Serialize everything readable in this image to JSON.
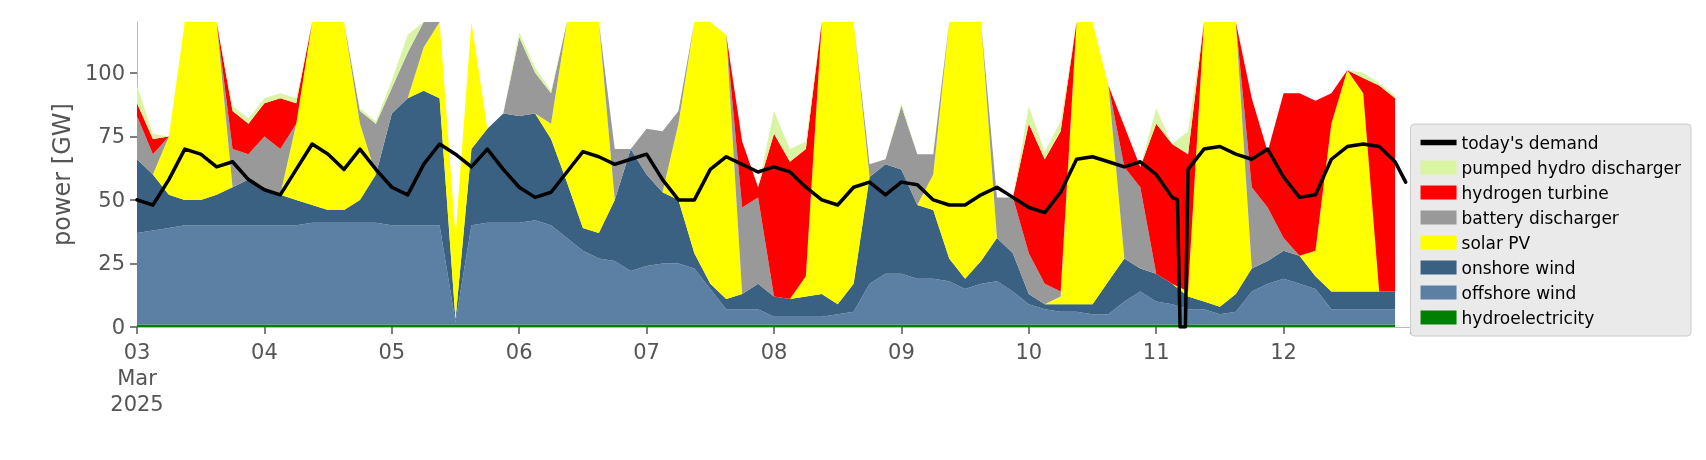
{
  "chart_data": {
    "type": "area",
    "stacked": true,
    "ylabel": "power [GW]",
    "ylim": [
      0,
      120
    ],
    "yticks": [
      0,
      25,
      50,
      75,
      100
    ],
    "xlim": [
      "2025-03-03",
      "2025-03-13"
    ],
    "xticks": [
      {
        "value": "2025-03-03",
        "label": "03\nMar\n2025"
      },
      {
        "value": "2025-03-04",
        "label": "04"
      },
      {
        "value": "2025-03-05",
        "label": "05"
      },
      {
        "value": "2025-03-06",
        "label": "06"
      },
      {
        "value": "2025-03-07",
        "label": "07"
      },
      {
        "value": "2025-03-08",
        "label": "08"
      },
      {
        "value": "2025-03-09",
        "label": "09"
      },
      {
        "value": "2025-03-10",
        "label": "10"
      },
      {
        "value": "2025-03-11",
        "label": "11"
      },
      {
        "value": "2025-03-12",
        "label": "12"
      },
      {
        "value": "2025-03-13",
        "label": null
      }
    ],
    "legend": "right",
    "marker": "none",
    "x": [
      "2025-03-03T00:00",
      "2025-03-03T03:00",
      "2025-03-03T06:00",
      "2025-03-03T09:00",
      "2025-03-03T12:00",
      "2025-03-03T15:00",
      "2025-03-03T18:00",
      "2025-03-03T21:00",
      "2025-03-04T00:00",
      "2025-03-04T03:00",
      "2025-03-04T06:00",
      "2025-03-04T09:00",
      "2025-03-04T12:00",
      "2025-03-04T15:00",
      "2025-03-04T18:00",
      "2025-03-04T21:00",
      "2025-03-05T00:00",
      "2025-03-05T03:00",
      "2025-03-05T06:00",
      "2025-03-05T09:00",
      "2025-03-05T12:00",
      "2025-03-05T15:00",
      "2025-03-05T18:00",
      "2025-03-05T21:00",
      "2025-03-06T00:00",
      "2025-03-06T03:00",
      "2025-03-06T06:00",
      "2025-03-06T09:00",
      "2025-03-06T12:00",
      "2025-03-06T15:00",
      "2025-03-06T18:00",
      "2025-03-06T21:00",
      "2025-03-07T00:00",
      "2025-03-07T03:00",
      "2025-03-07T06:00",
      "2025-03-07T09:00",
      "2025-03-07T12:00",
      "2025-03-07T15:00",
      "2025-03-07T18:00",
      "2025-03-07T21:00",
      "2025-03-08T00:00",
      "2025-03-08T03:00",
      "2025-03-08T06:00",
      "2025-03-08T09:00",
      "2025-03-08T12:00",
      "2025-03-08T15:00",
      "2025-03-08T18:00",
      "2025-03-08T21:00",
      "2025-03-09T00:00",
      "2025-03-09T03:00",
      "2025-03-09T06:00",
      "2025-03-09T09:00",
      "2025-03-09T12:00",
      "2025-03-09T15:00",
      "2025-03-09T18:00",
      "2025-03-09T21:00",
      "2025-03-10T00:00",
      "2025-03-10T03:00",
      "2025-03-10T06:00",
      "2025-03-10T09:00",
      "2025-03-10T12:00",
      "2025-03-10T15:00",
      "2025-03-10T18:00",
      "2025-03-10T21:00",
      "2025-03-11T00:00",
      "2025-03-11T03:00",
      "2025-03-11T06:00",
      "2025-03-11T09:00",
      "2025-03-11T12:00",
      "2025-03-11T15:00",
      "2025-03-11T18:00",
      "2025-03-11T21:00",
      "2025-03-12T00:00",
      "2025-03-12T03:00",
      "2025-03-12T06:00",
      "2025-03-12T09:00",
      "2025-03-12T12:00",
      "2025-03-12T15:00",
      "2025-03-12T18:00",
      "2025-03-12T21:00"
    ],
    "series": [
      {
        "name": "hydroelectricity",
        "color": "#008000",
        "values": [
          1,
          1,
          1,
          1,
          1,
          1,
          1,
          1,
          1,
          1,
          1,
          1,
          1,
          1,
          1,
          1,
          1,
          1,
          1,
          1,
          1,
          1,
          1,
          1,
          1,
          1,
          1,
          1,
          1,
          1,
          1,
          1,
          1,
          1,
          1,
          1,
          1,
          1,
          1,
          1,
          1,
          1,
          1,
          1,
          1,
          1,
          1,
          1,
          1,
          1,
          1,
          1,
          1,
          1,
          1,
          1,
          1,
          1,
          1,
          1,
          1,
          1,
          1,
          1,
          1,
          1,
          1,
          1,
          1,
          1,
          1,
          1,
          1,
          1,
          1,
          1,
          1,
          1,
          1,
          1
        ]
      },
      {
        "name": "offshore wind",
        "color": "#5b80a3",
        "values": [
          36,
          37,
          38,
          39,
          39,
          39,
          39,
          39,
          39,
          39,
          39,
          40,
          40,
          40,
          40,
          40,
          39,
          39,
          39,
          39,
          1,
          39,
          40,
          40,
          40,
          41,
          39,
          34,
          29,
          26,
          25,
          21,
          23,
          24,
          24,
          22,
          14,
          6,
          6,
          6,
          3,
          3,
          3,
          3,
          4,
          5,
          16,
          20,
          20,
          18,
          18,
          17,
          14,
          16,
          17,
          13,
          8,
          6,
          5,
          5,
          4,
          4,
          9,
          13,
          9,
          8,
          6,
          6,
          4,
          5,
          13,
          16,
          18,
          16,
          14,
          6,
          6,
          6,
          6,
          6
        ]
      },
      {
        "name": "onshore wind",
        "color": "#3b6182",
        "values": [
          29,
          22,
          13,
          10,
          10,
          12,
          15,
          18,
          15,
          12,
          10,
          7,
          5,
          5,
          9,
          19,
          44,
          50,
          53,
          50,
          1,
          30,
          37,
          43,
          42,
          42,
          34,
          22,
          9,
          10,
          24,
          48,
          36,
          28,
          25,
          6,
          2,
          4,
          6,
          10,
          8,
          7,
          8,
          9,
          4,
          11,
          42,
          43,
          41,
          29,
          27,
          9,
          4,
          9,
          17,
          15,
          4,
          2,
          3,
          3,
          4,
          13,
          17,
          9,
          11,
          8,
          5,
          3,
          3,
          7,
          9,
          9,
          11,
          11,
          5,
          7,
          7,
          7,
          7,
          7
        ]
      },
      {
        "name": "solar PV",
        "color": "#ffff00",
        "values": [
          0,
          0,
          23,
          70,
          70,
          68,
          0,
          0,
          0,
          0,
          30,
          72,
          74,
          74,
          30,
          0,
          0,
          0,
          17,
          30,
          33,
          50,
          0,
          0,
          0,
          0,
          6,
          63,
          81,
          83,
          0,
          0,
          0,
          0,
          30,
          91,
          103,
          104,
          0,
          0,
          0,
          0,
          8,
          107,
          111,
          103,
          0,
          0,
          0,
          0,
          14,
          93,
          101,
          94,
          0,
          0,
          0,
          0,
          3,
          111,
          111,
          77,
          0,
          0,
          0,
          0,
          2,
          110,
          112,
          107,
          0,
          0,
          0,
          0,
          10,
          66,
          87,
          78,
          0,
          0
        ]
      },
      {
        "name": "battery discharger",
        "color": "#999999",
        "values": [
          17,
          8,
          0,
          0,
          0,
          0,
          15,
          10,
          20,
          18,
          0,
          0,
          0,
          0,
          5,
          20,
          10,
          18,
          10,
          0,
          0,
          0,
          0,
          0,
          31,
          16,
          12,
          0,
          0,
          0,
          20,
          0,
          18,
          24,
          5,
          0,
          0,
          0,
          34,
          34,
          0,
          0,
          0,
          0,
          0,
          0,
          5,
          2,
          25,
          20,
          8,
          0,
          0,
          0,
          16,
          22,
          16,
          8,
          2,
          0,
          0,
          0,
          36,
          32,
          0,
          0,
          0,
          0,
          0,
          0,
          32,
          21,
          5,
          0,
          0,
          0,
          0,
          0,
          0,
          0
        ]
      },
      {
        "name": "hydrogen turbine",
        "color": "#ff0000",
        "values": [
          5,
          6,
          0,
          0,
          0,
          0,
          15,
          12,
          13,
          20,
          8,
          0,
          0,
          0,
          0,
          0,
          0,
          0,
          0,
          0,
          0,
          0,
          0,
          0,
          0,
          0,
          0,
          0,
          0,
          0,
          0,
          0,
          0,
          0,
          0,
          0,
          0,
          0,
          26,
          4,
          64,
          54,
          50,
          0,
          0,
          0,
          0,
          0,
          0,
          0,
          0,
          0,
          0,
          0,
          0,
          0,
          51,
          49,
          63,
          0,
          0,
          0,
          16,
          8,
          59,
          55,
          54,
          0,
          0,
          0,
          35,
          22,
          57,
          64,
          59,
          12,
          0,
          6,
          81,
          76
        ]
      },
      {
        "name": "pumped hydro discharger",
        "color": "#d9f5a3",
        "values": [
          7,
          2,
          0,
          0,
          0,
          0,
          2,
          2,
          2,
          2,
          2,
          0,
          0,
          0,
          1,
          1,
          3,
          7,
          0,
          0,
          0,
          0,
          0,
          0,
          2,
          2,
          1,
          0,
          0,
          0,
          0,
          0,
          0,
          0,
          0,
          0,
          0,
          0,
          0,
          0,
          9,
          5,
          3,
          0,
          0,
          0,
          0,
          0,
          1,
          0,
          0,
          0,
          0,
          0,
          0,
          0,
          7,
          3,
          4,
          0,
          0,
          0,
          0,
          0,
          6,
          0,
          9,
          0,
          0,
          0,
          0,
          0,
          0,
          0,
          0,
          0,
          0,
          2,
          1,
          1
        ]
      },
      {
        "name": "today's demand",
        "type": "line",
        "color": "#000000",
        "x": [
          "2025-03-03T00:00",
          "2025-03-03T03:00",
          "2025-03-03T06:00",
          "2025-03-03T09:00",
          "2025-03-03T12:00",
          "2025-03-03T15:00",
          "2025-03-03T18:00",
          "2025-03-03T21:00",
          "2025-03-04T00:00",
          "2025-03-04T03:00",
          "2025-03-04T06:00",
          "2025-03-04T09:00",
          "2025-03-04T12:00",
          "2025-03-04T15:00",
          "2025-03-04T18:00",
          "2025-03-04T21:00",
          "2025-03-05T00:00",
          "2025-03-05T03:00",
          "2025-03-05T06:00",
          "2025-03-05T09:00",
          "2025-03-05T12:00",
          "2025-03-05T15:00",
          "2025-03-05T18:00",
          "2025-03-05T21:00",
          "2025-03-06T00:00",
          "2025-03-06T03:00",
          "2025-03-06T06:00",
          "2025-03-06T09:00",
          "2025-03-06T12:00",
          "2025-03-06T15:00",
          "2025-03-06T18:00",
          "2025-03-06T21:00",
          "2025-03-07T00:00",
          "2025-03-07T03:00",
          "2025-03-07T06:00",
          "2025-03-07T09:00",
          "2025-03-07T12:00",
          "2025-03-07T15:00",
          "2025-03-07T18:00",
          "2025-03-07T21:00",
          "2025-03-08T00:00",
          "2025-03-08T03:00",
          "2025-03-08T06:00",
          "2025-03-08T09:00",
          "2025-03-08T12:00",
          "2025-03-08T15:00",
          "2025-03-08T18:00",
          "2025-03-08T21:00",
          "2025-03-09T00:00",
          "2025-03-09T03:00",
          "2025-03-09T06:00",
          "2025-03-09T09:00",
          "2025-03-09T12:00",
          "2025-03-09T15:00",
          "2025-03-09T18:00",
          "2025-03-09T21:00",
          "2025-03-10T00:00",
          "2025-03-10T03:00",
          "2025-03-10T06:00",
          "2025-03-10T09:00",
          "2025-03-10T12:00",
          "2025-03-10T15:00",
          "2025-03-10T18:00",
          "2025-03-10T21:00",
          "2025-03-11T00:00",
          "2025-03-11T03:00",
          "2025-03-11T04:00",
          "2025-03-11T04:30",
          "2025-03-11T05:30",
          "2025-03-11T06:00",
          "2025-03-11T09:00",
          "2025-03-11T12:00",
          "2025-03-11T15:00",
          "2025-03-11T18:00",
          "2025-03-11T21:00",
          "2025-03-12T00:00",
          "2025-03-12T03:00",
          "2025-03-12T06:00",
          "2025-03-12T09:00",
          "2025-03-12T12:00",
          "2025-03-12T15:00",
          "2025-03-12T18:00",
          "2025-03-12T21:00",
          "2025-03-12T23:00"
        ],
        "values": [
          50,
          48,
          58,
          70,
          68,
          63,
          65,
          58,
          54,
          52,
          62,
          72,
          68,
          62,
          70,
          62,
          55,
          52,
          64,
          72,
          68,
          63,
          70,
          62,
          55,
          51,
          53,
          61,
          69,
          67,
          64,
          66,
          68,
          58,
          50,
          50,
          62,
          67,
          64,
          61,
          63,
          61,
          55,
          50,
          48,
          55,
          57,
          52,
          57,
          56,
          50,
          48,
          48,
          52,
          55,
          51,
          47,
          45,
          53,
          66,
          67,
          65,
          63,
          65,
          60,
          51,
          50,
          0,
          0,
          62,
          70,
          71,
          68,
          66,
          70,
          59,
          51,
          52,
          66,
          71,
          72,
          71,
          65,
          57
        ]
      }
    ]
  }
}
